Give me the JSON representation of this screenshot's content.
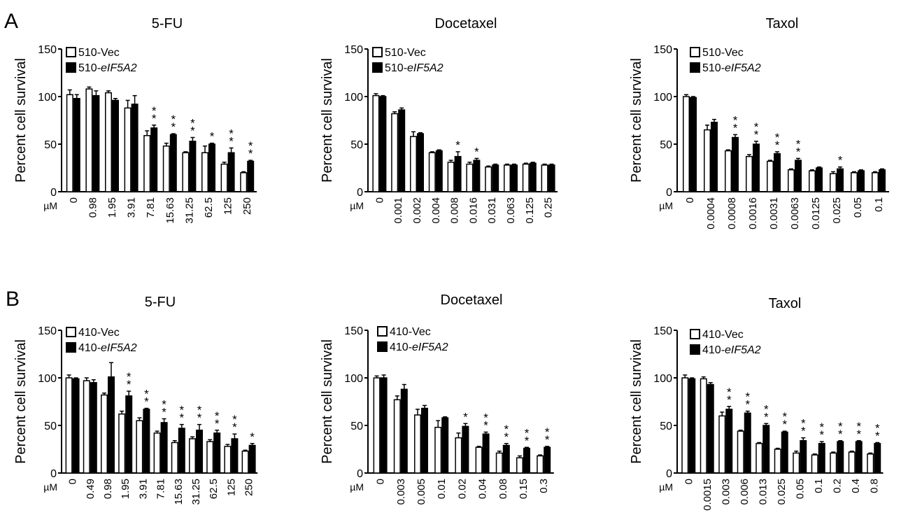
{
  "panel_letters": [
    "A",
    "B"
  ],
  "ylabel": "Percent cell survival",
  "unit": "µM",
  "yticks": [
    "0",
    "50",
    "100",
    "150"
  ],
  "chart_data": [
    {
      "panel": "A",
      "type": "bar",
      "title": "5-FU",
      "ylabel": "Percent cell survival",
      "ylim": [
        0,
        150
      ],
      "categories": [
        "0",
        "0.98",
        "1.95",
        "3.91",
        "7.81",
        "15.63",
        "31.25",
        "62.5",
        "125",
        "250"
      ],
      "legend": [
        {
          "prefix": "510-",
          "italic": "Vec"
        },
        {
          "prefix": "510-",
          "italic": "eIF5A2"
        }
      ],
      "series": [
        {
          "name": "510-Vec",
          "fill": "#ffffff",
          "values": [
            102,
            108,
            104,
            88,
            59,
            48,
            41,
            41,
            29,
            20
          ],
          "errors": [
            5,
            2,
            2,
            8,
            5,
            3,
            1,
            7,
            2,
            1
          ]
        },
        {
          "name": "510-eIF5A2",
          "fill": "#000000",
          "values": [
            98,
            101,
            96,
            92,
            67,
            60,
            53,
            50,
            41,
            32
          ],
          "errors": [
            4,
            5,
            2,
            9,
            3,
            1,
            4,
            1,
            5,
            1
          ]
        }
      ],
      "significance": [
        "",
        "",
        "",
        "",
        "**",
        "**",
        "**",
        "*",
        "**",
        "**"
      ]
    },
    {
      "panel": "A",
      "type": "bar",
      "title": "Docetaxel",
      "ylabel": "Percent cell survival",
      "ylim": [
        0,
        150
      ],
      "categories": [
        "0",
        "0.001",
        "0.002",
        "0.004",
        "0.008",
        "0.016",
        "0.031",
        "0.063",
        "0.125",
        "0.25"
      ],
      "legend": [
        {
          "prefix": "510-",
          "italic": "Vec"
        },
        {
          "prefix": "510-",
          "italic": "eIF5A2"
        }
      ],
      "series": [
        {
          "name": "510-Vec",
          "fill": "#ffffff",
          "values": [
            101,
            82,
            58,
            41,
            31,
            29,
            26,
            28,
            29,
            28
          ],
          "errors": [
            2,
            2,
            5,
            1,
            2,
            2,
            1,
            1,
            1,
            1
          ]
        },
        {
          "name": "510-eIF5A2",
          "fill": "#000000",
          "values": [
            100,
            86,
            61,
            43,
            37,
            33,
            28,
            28,
            30,
            28
          ],
          "errors": [
            1,
            2,
            1,
            1,
            5,
            2,
            1,
            1,
            1,
            1
          ]
        }
      ],
      "significance": [
        "",
        "",
        "",
        "",
        "*",
        "*",
        "",
        "",
        "",
        ""
      ]
    },
    {
      "panel": "A",
      "type": "bar",
      "title": "Taxol",
      "ylabel": "Percent cell survival",
      "ylim": [
        0,
        150
      ],
      "categories": [
        "0",
        "0.0004",
        "0.0008",
        "0.0016",
        "0.0031",
        "0.0063",
        "0.0125",
        "0.025",
        "0.05",
        "0.1"
      ],
      "legend": [
        {
          "prefix": "510-",
          "italic": "Vec"
        },
        {
          "prefix": "510-",
          "italic": "eIF5A2"
        }
      ],
      "series": [
        {
          "name": "510-Vec",
          "fill": "#ffffff",
          "values": [
            100,
            65,
            43,
            37,
            32,
            23,
            22,
            19,
            20,
            20
          ],
          "errors": [
            2,
            5,
            1,
            2,
            1,
            1,
            1,
            2,
            1,
            1
          ]
        },
        {
          "name": "510-eIF5A2",
          "fill": "#000000",
          "values": [
            99,
            73,
            57,
            50,
            40,
            33,
            25,
            24,
            22,
            23
          ],
          "errors": [
            1,
            3,
            3,
            3,
            2,
            2,
            1,
            2,
            1,
            1
          ]
        }
      ],
      "significance": [
        "",
        "",
        "**",
        "**",
        "**",
        "**",
        "",
        "*",
        "",
        ""
      ]
    },
    {
      "panel": "B",
      "type": "bar",
      "title": "5-FU",
      "ylabel": "Percent cell survival",
      "ylim": [
        0,
        150
      ],
      "categories": [
        "0",
        "0.49",
        "0.98",
        "1.95",
        "3.91",
        "7.81",
        "15.63",
        "31.25",
        "62.5",
        "125",
        "250"
      ],
      "legend": [
        {
          "prefix": "410-",
          "italic": "Vec"
        },
        {
          "prefix": "410-",
          "italic": "eIF5A2"
        }
      ],
      "series": [
        {
          "name": "410-Vec",
          "fill": "#ffffff",
          "values": [
            100,
            97,
            82,
            62,
            55,
            42,
            32,
            36,
            33,
            28,
            23
          ],
          "errors": [
            3,
            3,
            2,
            3,
            3,
            2,
            2,
            2,
            2,
            2,
            1
          ]
        },
        {
          "name": "410-eIF5A2",
          "fill": "#000000",
          "values": [
            99,
            95,
            101,
            81,
            67,
            53,
            47,
            45,
            42,
            36,
            29
          ],
          "errors": [
            1,
            3,
            15,
            5,
            1,
            4,
            4,
            6,
            3,
            5,
            2
          ]
        }
      ],
      "significance": [
        "",
        "",
        "",
        "**",
        "**",
        "**",
        "**",
        "**",
        "**",
        "**",
        "*"
      ]
    },
    {
      "panel": "B",
      "type": "bar",
      "title": "Docetaxel",
      "ylabel": "Percent cell survival",
      "ylim": [
        0,
        150
      ],
      "categories": [
        "0",
        "0.003",
        "0.005",
        "0.01",
        "0.02",
        "0.04",
        "0.08",
        "0.15",
        "0.3"
      ],
      "legend": [
        {
          "prefix": "410-",
          "italic": "Vec"
        },
        {
          "prefix": "410-",
          "italic": "eIF5A2"
        }
      ],
      "series": [
        {
          "name": "410-Vec",
          "fill": "#ffffff",
          "values": [
            100,
            77,
            61,
            48,
            37,
            27,
            21,
            16,
            18
          ],
          "errors": [
            2,
            4,
            6,
            7,
            5,
            1,
            2,
            2,
            1
          ]
        },
        {
          "name": "410-eIF5A2",
          "fill": "#000000",
          "values": [
            100,
            88,
            68,
            58,
            49,
            41,
            29,
            26,
            27
          ],
          "errors": [
            3,
            5,
            3,
            1,
            3,
            2,
            2,
            1,
            1
          ]
        }
      ],
      "significance": [
        "",
        "",
        "",
        "",
        "*",
        "**",
        "**",
        "**",
        "**"
      ]
    },
    {
      "panel": "B",
      "type": "bar",
      "title": "Taxol",
      "ylabel": "Percent cell survival",
      "ylim": [
        0,
        150
      ],
      "categories": [
        "0",
        "0.0015",
        "0.003",
        "0.006",
        "0.013",
        "0.025",
        "0.05",
        "0.1",
        "0.2",
        "0.4",
        "0.8"
      ],
      "legend": [
        {
          "prefix": "410-",
          "italic": "Vec"
        },
        {
          "prefix": "410-",
          "italic": "eIF5A2"
        }
      ],
      "series": [
        {
          "name": "410-Vec",
          "fill": "#ffffff",
          "values": [
            100,
            99,
            60,
            44,
            31,
            25,
            21,
            19,
            21,
            22,
            20
          ],
          "errors": [
            3,
            2,
            4,
            1,
            1,
            1,
            2,
            1,
            1,
            1,
            1
          ]
        },
        {
          "name": "410-eIF5A2",
          "fill": "#000000",
          "values": [
            99,
            93,
            67,
            63,
            50,
            43,
            34,
            31,
            33,
            33,
            31
          ],
          "errors": [
            1,
            2,
            3,
            2,
            2,
            1,
            3,
            2,
            1,
            1,
            1
          ]
        }
      ],
      "significance": [
        "",
        "",
        "**",
        "**",
        "**",
        "**",
        "**",
        "**",
        "**",
        "**",
        "**"
      ]
    }
  ]
}
